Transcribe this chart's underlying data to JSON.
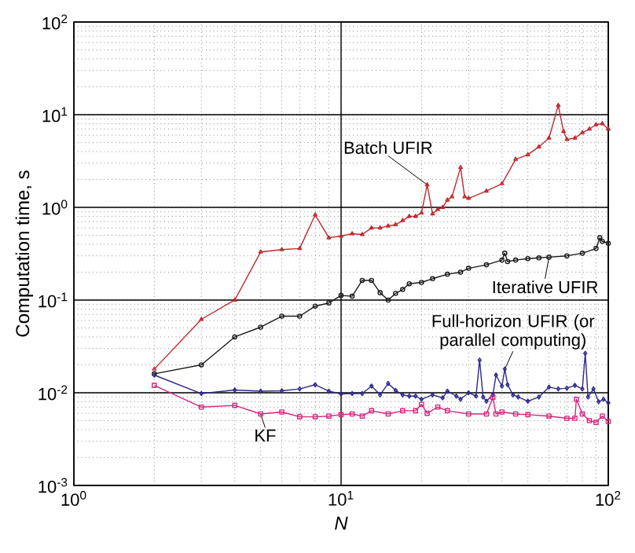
{
  "chart_data": {
    "type": "line",
    "xlabel": "*N*",
    "ylabel": "Computation time, s",
    "log": "xy",
    "grid": true,
    "xlim": [
      1,
      100
    ],
    "ylim": [
      0.001,
      100
    ],
    "xticks": [
      {
        "value": 1,
        "label": "10$^{0}$"
      },
      {
        "value": 10,
        "label": "10$^{1}$"
      },
      {
        "value": 100,
        "label": "10$^{2}$"
      }
    ],
    "yticks": [
      {
        "value": 0.001,
        "label": "10$^{-3}$"
      },
      {
        "value": 0.01,
        "label": "10$^{-2}$"
      },
      {
        "value": 0.1,
        "label": "10$^{-1}$"
      },
      {
        "value": 1,
        "label": "10$^{0}$"
      },
      {
        "value": 10,
        "label": "10$^{1}$"
      },
      {
        "value": 100,
        "label": "10$^{2}$"
      }
    ],
    "series": [
      {
        "name": "Batch UFIR",
        "color": "#c0282e",
        "marker": "triangle",
        "x": [
          2,
          3,
          4,
          5,
          6,
          7,
          8,
          9,
          10,
          11,
          12,
          13,
          14,
          15,
          16,
          17,
          18,
          19,
          20,
          21,
          22,
          23,
          24,
          25,
          26,
          28,
          29,
          30,
          35,
          40,
          45,
          50,
          55,
          60,
          65,
          68,
          70,
          75,
          80,
          85,
          90,
          95,
          100
        ],
        "values": [
          0.018,
          0.062,
          0.1,
          0.33,
          0.35,
          0.36,
          0.83,
          0.47,
          0.49,
          0.52,
          0.51,
          0.6,
          0.6,
          0.63,
          0.65,
          0.72,
          0.8,
          0.8,
          0.87,
          1.75,
          0.85,
          0.95,
          1.0,
          1.2,
          1.3,
          2.7,
          1.3,
          1.25,
          1.5,
          1.8,
          3.3,
          3.7,
          4.5,
          5.6,
          12.6,
          6.6,
          5.4,
          5.6,
          6.4,
          7,
          7.8,
          8,
          7
        ]
      },
      {
        "name": "Iterative UFIR",
        "color": "#1a1a1a",
        "marker": "circle",
        "x": [
          2,
          3,
          4,
          5,
          6,
          7,
          8,
          9,
          10,
          11,
          12,
          13,
          14,
          15,
          16,
          17,
          18,
          20,
          22,
          25,
          28,
          30,
          35,
          40,
          41,
          42,
          45,
          50,
          55,
          60,
          70,
          80,
          90,
          93,
          95,
          100
        ],
        "values": [
          0.016,
          0.02,
          0.04,
          0.051,
          0.067,
          0.067,
          0.086,
          0.093,
          0.112,
          0.11,
          0.163,
          0.163,
          0.12,
          0.1,
          0.118,
          0.13,
          0.15,
          0.155,
          0.17,
          0.19,
          0.2,
          0.22,
          0.24,
          0.27,
          0.32,
          0.26,
          0.27,
          0.28,
          0.285,
          0.29,
          0.3,
          0.32,
          0.36,
          0.47,
          0.43,
          0.41
        ]
      },
      {
        "name": "Full-horizon UFIR (or parallel computing)",
        "color": "#2e2a8c",
        "marker": "diamond",
        "x": [
          2,
          3,
          4,
          5,
          6,
          7,
          8,
          9,
          10,
          11,
          12,
          13,
          14,
          15,
          16,
          17,
          18,
          19,
          20,
          22,
          24,
          25,
          27,
          28,
          30,
          32,
          33,
          34,
          35,
          37,
          38,
          40,
          41,
          42,
          44,
          46,
          50,
          55,
          60,
          65,
          70,
          75,
          80,
          82,
          84,
          88,
          92,
          96,
          100
        ],
        "values": [
          0.0155,
          0.0098,
          0.0107,
          0.0104,
          0.0105,
          0.011,
          0.0122,
          0.0104,
          0.0097,
          0.0098,
          0.0098,
          0.0118,
          0.0095,
          0.0126,
          0.0106,
          0.0095,
          0.0092,
          0.0092,
          0.0085,
          0.0095,
          0.0088,
          0.0104,
          0.0092,
          0.0085,
          0.01,
          0.0092,
          0.0225,
          0.009,
          0.0081,
          0.0095,
          0.0155,
          0.0118,
          0.018,
          0.0122,
          0.0095,
          0.009,
          0.0081,
          0.009,
          0.0115,
          0.011,
          0.0112,
          0.012,
          0.011,
          0.0266,
          0.009,
          0.011,
          0.008,
          0.0085,
          0.0078
        ]
      },
      {
        "name": "KF",
        "color": "#d6267e",
        "marker": "square",
        "x": [
          2,
          3,
          4,
          5,
          6,
          7,
          8,
          9,
          10,
          11,
          12,
          13,
          15,
          17,
          19,
          20,
          21,
          23,
          25,
          30,
          35,
          37,
          38,
          40,
          45,
          50,
          60,
          70,
          75,
          76,
          80,
          85,
          90,
          95,
          100
        ],
        "values": [
          0.012,
          0.007,
          0.0073,
          0.0059,
          0.0062,
          0.0055,
          0.0055,
          0.0056,
          0.0058,
          0.0059,
          0.0056,
          0.0064,
          0.0059,
          0.0064,
          0.0064,
          0.0075,
          0.006,
          0.007,
          0.0064,
          0.0059,
          0.0059,
          0.0089,
          0.0059,
          0.0062,
          0.0059,
          0.0058,
          0.0056,
          0.0053,
          0.0053,
          0.0085,
          0.0059,
          0.005,
          0.0048,
          0.0056,
          0.0049
        ]
      }
    ]
  }
}
